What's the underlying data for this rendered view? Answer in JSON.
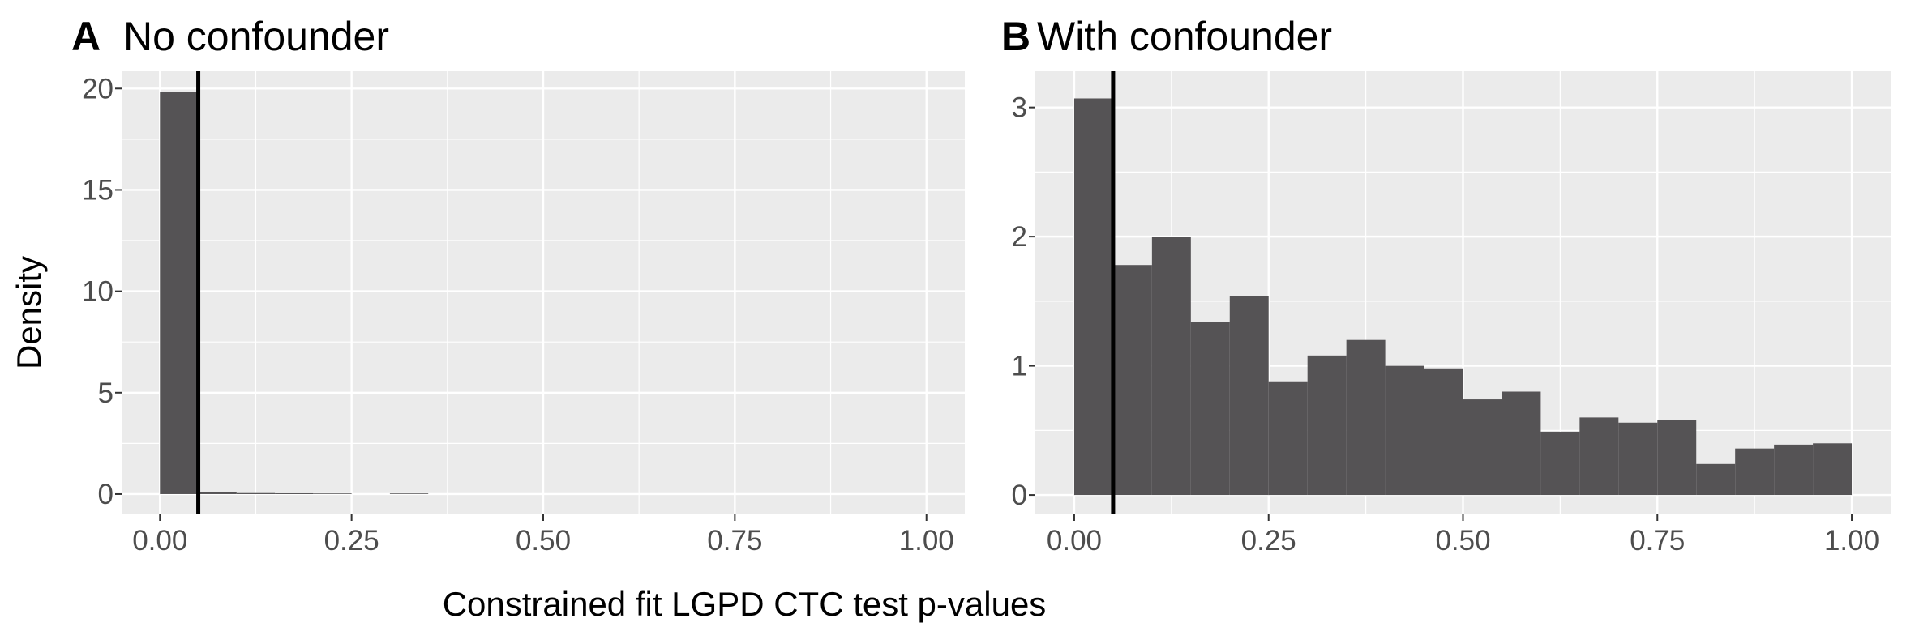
{
  "figure": {
    "xlabel": "Constrained fit LGPD CTC test p-values",
    "ylabel": "Density"
  },
  "chart_data": [
    {
      "type": "bar",
      "tag": "A",
      "title": "No confounder",
      "xlabel": "Constrained fit LGPD CTC test p-values",
      "ylabel": "Density",
      "bin_width": 0.05,
      "bin_starts": [
        0.0,
        0.05,
        0.1,
        0.15,
        0.2,
        0.25,
        0.3,
        0.35,
        0.4,
        0.45,
        0.5,
        0.55,
        0.6,
        0.65,
        0.7,
        0.75,
        0.8,
        0.85,
        0.9,
        0.95
      ],
      "values": [
        19.85,
        0.08,
        0.05,
        0.04,
        0.03,
        0.0,
        0.03,
        0.0,
        0.0,
        0.0,
        0.0,
        0.0,
        0.0,
        0.0,
        0.0,
        0.0,
        0.0,
        0.0,
        0.0,
        0.0
      ],
      "vline_x": 0.05,
      "xlim": [
        -0.05,
        1.05
      ],
      "ylim": [
        -1.0,
        20.85
      ],
      "xticks": [
        0.0,
        0.25,
        0.5,
        0.75,
        1.0
      ],
      "xtick_labels": [
        "0.00",
        "0.25",
        "0.50",
        "0.75",
        "1.00"
      ],
      "yticks": [
        0,
        5,
        10,
        15,
        20
      ],
      "ytick_labels": [
        "0",
        "5",
        "10",
        "15",
        "20"
      ],
      "grid": true
    },
    {
      "type": "bar",
      "tag": "B",
      "title": "With confounder",
      "xlabel": "Constrained fit LGPD CTC test p-values",
      "ylabel": "Density",
      "bin_width": 0.05,
      "bin_starts": [
        0.0,
        0.05,
        0.1,
        0.15,
        0.2,
        0.25,
        0.3,
        0.35,
        0.4,
        0.45,
        0.5,
        0.55,
        0.6,
        0.65,
        0.7,
        0.75,
        0.8,
        0.85,
        0.9,
        0.95
      ],
      "values": [
        3.07,
        1.78,
        2.0,
        1.34,
        1.54,
        0.88,
        1.08,
        1.2,
        1.0,
        0.98,
        0.74,
        0.8,
        0.49,
        0.6,
        0.56,
        0.58,
        0.24,
        0.36,
        0.39,
        0.4
      ],
      "vline_x": 0.05,
      "xlim": [
        -0.05,
        1.05
      ],
      "ylim": [
        -0.15,
        3.28
      ],
      "xticks": [
        0.0,
        0.25,
        0.5,
        0.75,
        1.0
      ],
      "xtick_labels": [
        "0.00",
        "0.25",
        "0.50",
        "0.75",
        "1.00"
      ],
      "yticks": [
        0,
        1,
        2,
        3
      ],
      "ytick_labels": [
        "0",
        "1",
        "2",
        "3"
      ],
      "grid": true
    }
  ]
}
